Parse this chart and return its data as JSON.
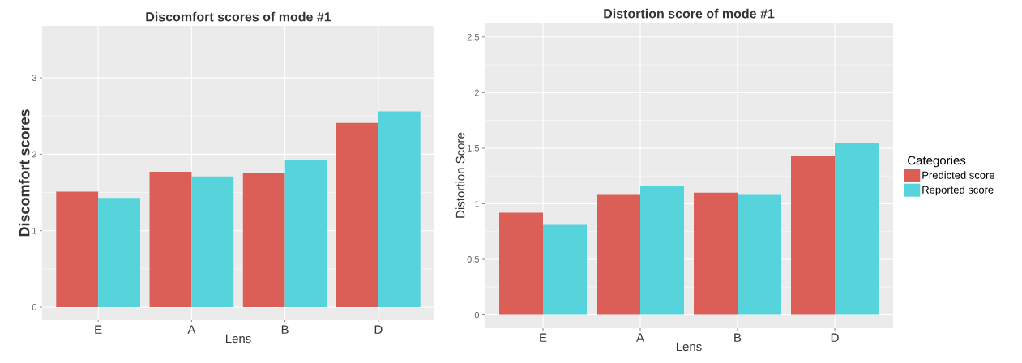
{
  "chart_data": [
    {
      "type": "bar",
      "title": "Discomfort scores of mode #1",
      "xlabel": "Lens",
      "ylabel": "Discomfort scores",
      "categories": [
        "E",
        "A",
        "B",
        "D"
      ],
      "series": [
        {
          "color": "#db5f57",
          "values": [
            1.51,
            1.77,
            1.76,
            2.41
          ]
        },
        {
          "color": "#57d3db",
          "values": [
            1.43,
            1.71,
            1.93,
            2.56
          ]
        }
      ],
      "ylim": [
        -0.17,
        3.68
      ],
      "yticks": [
        0,
        1,
        2,
        3
      ],
      "grid": true
    },
    {
      "type": "bar",
      "title": "Distortion score of mode #1",
      "xlabel": "Lens",
      "ylabel": "Distortion  Score",
      "categories": [
        "E",
        "A",
        "B",
        "D"
      ],
      "series": [
        {
          "name": "Predicted score",
          "color": "#db5f57",
          "values": [
            0.92,
            1.08,
            1.1,
            1.43
          ]
        },
        {
          "name": "Reported score",
          "color": "#57d3db",
          "values": [
            0.81,
            1.16,
            1.08,
            1.55
          ]
        }
      ],
      "ylim": [
        -0.12,
        2.63
      ],
      "yticks": [
        0,
        0.5,
        1,
        1.5,
        2,
        2.5
      ],
      "grid": true,
      "legend": "right",
      "legend_title": "Categories"
    }
  ]
}
